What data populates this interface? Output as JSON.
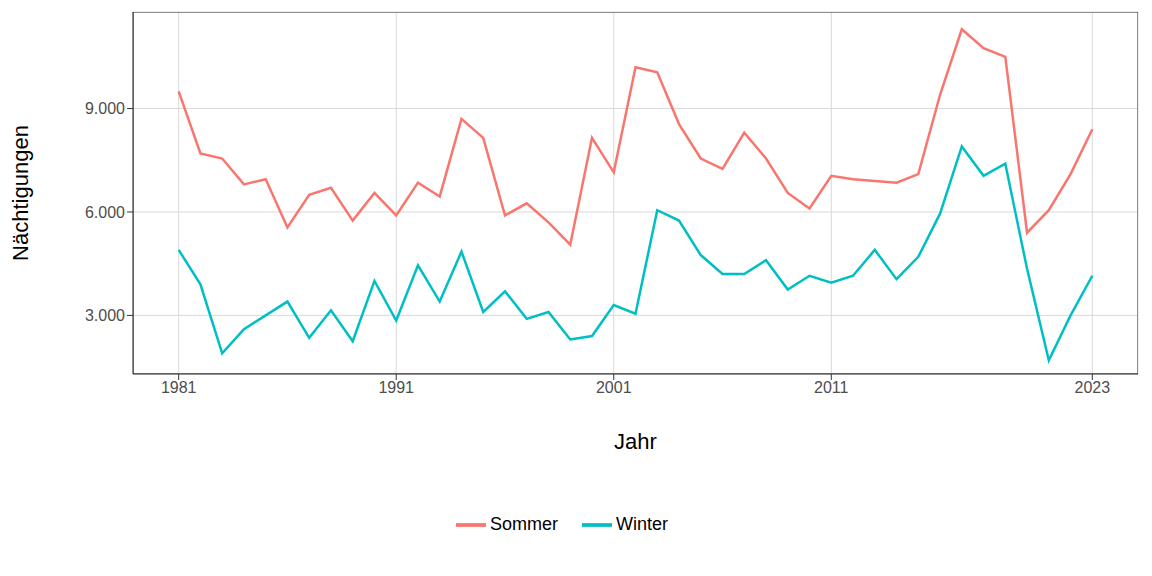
{
  "chart_data": {
    "type": "line",
    "x_label": "Jahr",
    "y_label": "Nächtigungen",
    "x": [
      1981,
      1982,
      1983,
      1984,
      1985,
      1986,
      1987,
      1988,
      1989,
      1990,
      1991,
      1992,
      1993,
      1994,
      1995,
      1996,
      1997,
      1998,
      1999,
      2000,
      2001,
      2002,
      2003,
      2004,
      2005,
      2006,
      2007,
      2008,
      2009,
      2010,
      2011,
      2012,
      2013,
      2014,
      2015,
      2016,
      2017,
      2018,
      2019,
      2020,
      2021,
      2022,
      2023
    ],
    "series": [
      {
        "name": "Sommer",
        "color": "#F8766D",
        "values": [
          9500,
          7700,
          7550,
          6800,
          6950,
          5550,
          6500,
          6700,
          5750,
          6550,
          5900,
          6850,
          6450,
          8700,
          8150,
          5900,
          6250,
          5700,
          5050,
          8150,
          7150,
          10200,
          10050,
          8550,
          7550,
          7250,
          8300,
          7550,
          6550,
          6100,
          7050,
          6950,
          6900,
          6850,
          7100,
          9400,
          11300,
          10750,
          10500,
          5400,
          6050,
          7100,
          8400
        ]
      },
      {
        "name": "Winter",
        "color": "#00BFC4",
        "values": [
          4900,
          3900,
          1900,
          2600,
          3000,
          3400,
          2350,
          3150,
          2250,
          4000,
          2850,
          4450,
          3400,
          4850,
          3100,
          3700,
          2900,
          3100,
          2300,
          2400,
          3300,
          3050,
          6050,
          5750,
          4750,
          4200,
          4200,
          4600,
          3750,
          4150,
          3950,
          4150,
          4900,
          4050,
          4700,
          5950,
          7900,
          7050,
          7400,
          4350,
          1700,
          3000,
          4150
        ]
      }
    ],
    "xlim": [
      1978.9,
      2025.1
    ],
    "xticks": [
      1981,
      1991,
      2001,
      2011,
      2023
    ],
    "ylim": [
      1300,
      11800
    ],
    "yticks": [
      {
        "value": 3000,
        "label": "3.000"
      },
      {
        "value": 6000,
        "label": "6.000"
      },
      {
        "value": 9000,
        "label": "9.000"
      }
    ],
    "grid": true,
    "legend": "bottom"
  }
}
